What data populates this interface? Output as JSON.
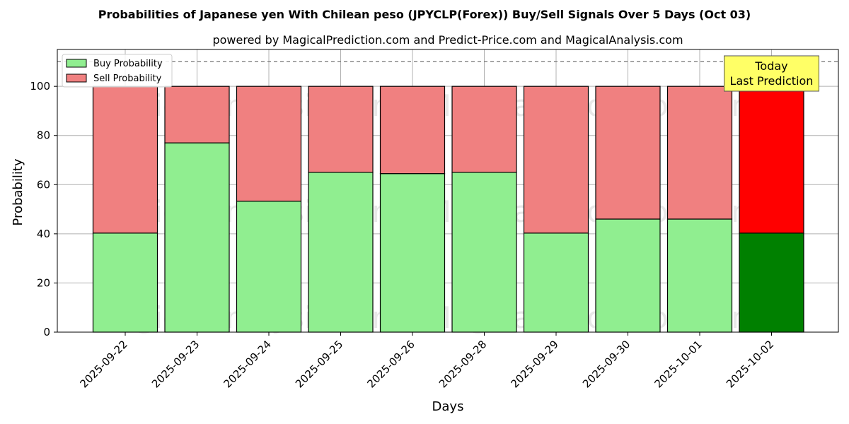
{
  "chart_data": {
    "type": "bar",
    "stacked": true,
    "title": "Probabilities of Japanese yen With Chilean peso (JPYCLP(Forex)) Buy/Sell Signals Over 5 Days (Oct 03)",
    "subtitle": "powered by MagicalPrediction.com and Predict-Price.com and MagicalAnalysis.com",
    "xlabel": "Days",
    "ylabel": "Probability",
    "ylim": [
      0,
      115
    ],
    "yticks": [
      0,
      20,
      40,
      60,
      80,
      100
    ],
    "grid": true,
    "legend_position": "top-left",
    "reference_line": 110,
    "categories": [
      "2025-09-22",
      "2025-09-23",
      "2025-09-24",
      "2025-09-25",
      "2025-09-26",
      "2025-09-28",
      "2025-09-29",
      "2025-09-30",
      "2025-10-01",
      "2025-10-02"
    ],
    "series": [
      {
        "name": "Buy Probability",
        "values": [
          40.3,
          77.0,
          53.3,
          65.0,
          64.5,
          65.0,
          40.3,
          46.0,
          46.0,
          40.3
        ],
        "color": "#90ee90",
        "highlight_color": "#008000"
      },
      {
        "name": "Sell Probability",
        "values": [
          59.7,
          23.0,
          46.7,
          35.0,
          35.5,
          35.0,
          59.7,
          54.0,
          54.0,
          59.7
        ],
        "color": "#f08080",
        "highlight_color": "#ff0000"
      }
    ],
    "highlight_index": 9,
    "annotation": {
      "lines": [
        "Today",
        "Last Prediction"
      ],
      "background": "#ffff66"
    },
    "watermarks": [
      "MagicalAnalysis.com",
      "MagicalPrediction.com"
    ]
  }
}
